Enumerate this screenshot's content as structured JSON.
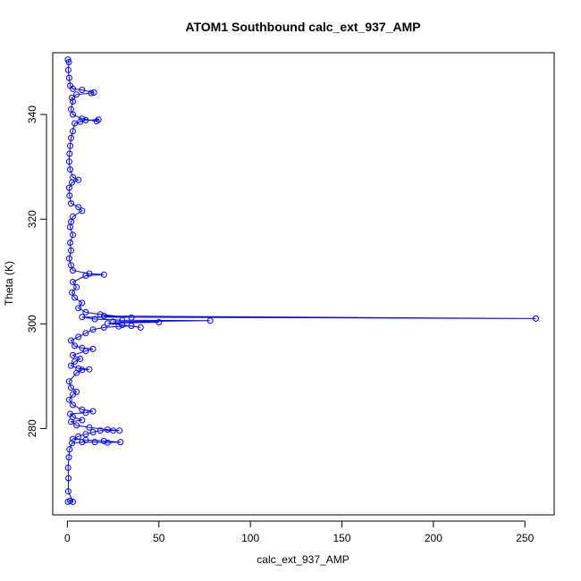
{
  "chart_data": {
    "type": "line",
    "title": "ATOM1 Southbound calc_ext_937_AMP",
    "xlabel": "calc_ext_937_AMP",
    "ylabel": "Theta (K)",
    "xlim": [
      -8,
      266
    ],
    "ylim": [
      263.5,
      351.8
    ],
    "xticks": [
      0,
      50,
      100,
      150,
      200,
      250
    ],
    "yticks": [
      280,
      300,
      320,
      340
    ],
    "grid": false,
    "legend": "none",
    "series_color": "#0000ff",
    "markers": "open-circle",
    "series": [
      {
        "points": [
          [
            0.3,
            266.0
          ],
          [
            1.5,
            266.2
          ],
          [
            3.0,
            266.0
          ],
          [
            0.5,
            268.0
          ],
          [
            0.6,
            270.5
          ],
          [
            0.4,
            272.5
          ],
          [
            0.8,
            274.5
          ],
          [
            1.2,
            276.0
          ],
          [
            2.5,
            277.2
          ],
          [
            8.0,
            277.4
          ],
          [
            15.0,
            277.4
          ],
          [
            22.0,
            277.3
          ],
          [
            29.0,
            277.4
          ],
          [
            20.0,
            277.6
          ],
          [
            10.0,
            277.8
          ],
          [
            3.0,
            278.0
          ],
          [
            6.0,
            278.5
          ],
          [
            10.0,
            278.9
          ],
          [
            14.0,
            279.3
          ],
          [
            18.0,
            279.6
          ],
          [
            25.0,
            279.6
          ],
          [
            28.5,
            279.6
          ],
          [
            22.0,
            279.8
          ],
          [
            12.0,
            280.2
          ],
          [
            5.0,
            280.6
          ],
          [
            2.0,
            281.3
          ],
          [
            8.0,
            281.6
          ],
          [
            3.0,
            282.2
          ],
          [
            1.5,
            282.8
          ],
          [
            10.0,
            283.0
          ],
          [
            14.0,
            283.3
          ],
          [
            8.0,
            283.6
          ],
          [
            3.0,
            284.5
          ],
          [
            1.0,
            285.5
          ],
          [
            3.0,
            286.5
          ],
          [
            5.0,
            287.0
          ],
          [
            2.0,
            287.8
          ],
          [
            1.0,
            289.0
          ],
          [
            5.0,
            290.6
          ],
          [
            8.0,
            291.2
          ],
          [
            12.0,
            291.3
          ],
          [
            6.0,
            291.5
          ],
          [
            2.0,
            292.0
          ],
          [
            4.0,
            292.8
          ],
          [
            7.0,
            293.3
          ],
          [
            3.0,
            294.0
          ],
          [
            10.0,
            294.8
          ],
          [
            14.0,
            295.2
          ],
          [
            8.0,
            295.4
          ],
          [
            4.0,
            295.8
          ],
          [
            2.0,
            296.8
          ],
          [
            6.0,
            297.5
          ],
          [
            10.0,
            298.2
          ],
          [
            14.0,
            298.9
          ],
          [
            20.0,
            299.3
          ],
          [
            28.0,
            299.5
          ],
          [
            35.0,
            299.6
          ],
          [
            40.0,
            299.3
          ],
          [
            30.0,
            299.8
          ],
          [
            22.0,
            300.1
          ],
          [
            50.0,
            300.3
          ],
          [
            25.0,
            300.4
          ],
          [
            78.0,
            300.6
          ],
          [
            30.0,
            300.7
          ],
          [
            15.0,
            300.9
          ],
          [
            8.0,
            301.3
          ],
          [
            256.0,
            301.0
          ],
          [
            20.0,
            301.5
          ],
          [
            35.0,
            301.2
          ],
          [
            18.0,
            301.8
          ],
          [
            10.0,
            302.2
          ],
          [
            6.0,
            303.0
          ],
          [
            8.0,
            304.0
          ],
          [
            4.0,
            305.0
          ],
          [
            2.5,
            306.0
          ],
          [
            5.0,
            307.0
          ],
          [
            3.0,
            308.0
          ],
          [
            10.0,
            309.2
          ],
          [
            20.0,
            309.4
          ],
          [
            12.0,
            309.6
          ],
          [
            3.0,
            310.2
          ],
          [
            2.0,
            311.2
          ],
          [
            1.0,
            312.5
          ],
          [
            2.0,
            314.0
          ],
          [
            1.5,
            315.5
          ],
          [
            3.0,
            317.0
          ],
          [
            1.5,
            318.5
          ],
          [
            2.0,
            319.5
          ],
          [
            3.0,
            320.5
          ],
          [
            8.0,
            321.6
          ],
          [
            6.0,
            322.3
          ],
          [
            2.0,
            323.0
          ],
          [
            1.2,
            324.5
          ],
          [
            1.0,
            326.0
          ],
          [
            2.5,
            327.0
          ],
          [
            6.0,
            327.5
          ],
          [
            3.0,
            328.0
          ],
          [
            1.5,
            329.5
          ],
          [
            1.0,
            331.0
          ],
          [
            1.2,
            332.5
          ],
          [
            1.5,
            334.0
          ],
          [
            2.0,
            335.5
          ],
          [
            3.0,
            336.8
          ],
          [
            4.0,
            338.3
          ],
          [
            7.0,
            338.6
          ],
          [
            10.0,
            338.9
          ],
          [
            17.0,
            339.0
          ],
          [
            16.0,
            338.7
          ],
          [
            8.0,
            339.2
          ],
          [
            3.0,
            340.0
          ],
          [
            2.0,
            341.0
          ],
          [
            3.0,
            342.5
          ],
          [
            2.5,
            343.2
          ],
          [
            5.0,
            343.8
          ],
          [
            13.0,
            344.1
          ],
          [
            14.5,
            344.2
          ],
          [
            8.0,
            344.7
          ],
          [
            3.0,
            344.9
          ],
          [
            1.5,
            345.5
          ],
          [
            1.0,
            347.0
          ],
          [
            0.5,
            348.5
          ],
          [
            0.8,
            350.0
          ],
          [
            0.3,
            350.5
          ]
        ]
      }
    ]
  }
}
